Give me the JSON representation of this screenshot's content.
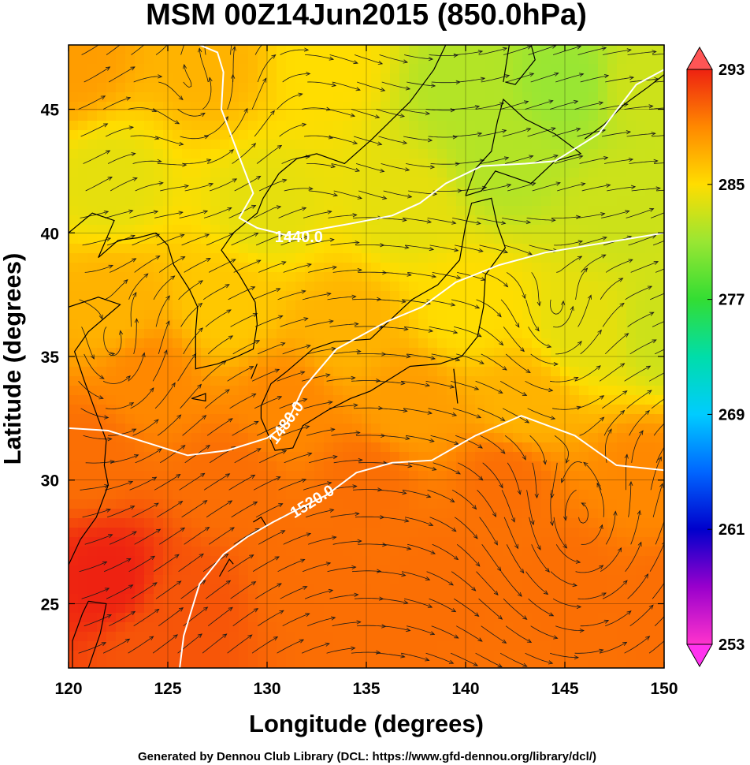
{
  "title": "MSM 00Z14Jun2015 (850.0hPa)",
  "credit": "Generated by Dennou Club Library (DCL: https://www.gfd-dennou.org/library/dcl/)",
  "chart_data": {
    "type": "heatmap",
    "title": "MSM 00Z14Jun2015 (850.0hPa)",
    "xlabel": "Longitude (degrees)",
    "ylabel": "Latitude  (degrees)",
    "xlim": [
      120,
      150
    ],
    "ylim": [
      22.4,
      47.6
    ],
    "x_ticks": [
      {
        "value": 120,
        "label": "120"
      },
      {
        "value": 125,
        "label": "125"
      },
      {
        "value": 130,
        "label": "130"
      },
      {
        "value": 135,
        "label": "135"
      },
      {
        "value": 140,
        "label": "140"
      },
      {
        "value": 145,
        "label": "145"
      },
      {
        "value": 150,
        "label": "150"
      }
    ],
    "y_ticks": [
      {
        "value": 25,
        "label": "25"
      },
      {
        "value": 30,
        "label": "30"
      },
      {
        "value": 35,
        "label": "35"
      },
      {
        "value": 40,
        "label": "40"
      },
      {
        "value": 45,
        "label": "45"
      }
    ],
    "grid": true,
    "colorbar": {
      "min": 253,
      "max": 293,
      "ticks": [
        {
          "value": 293,
          "label": "293"
        },
        {
          "value": 285,
          "label": "285"
        },
        {
          "value": 277,
          "label": "277"
        },
        {
          "value": 269,
          "label": "269"
        },
        {
          "value": 261,
          "label": "261"
        },
        {
          "value": 253,
          "label": "253"
        }
      ],
      "stops": [
        {
          "value": 253,
          "color": "#ff33cc"
        },
        {
          "value": 257,
          "color": "#9900cc"
        },
        {
          "value": 261,
          "color": "#0000cc"
        },
        {
          "value": 265,
          "color": "#0066ff"
        },
        {
          "value": 269,
          "color": "#00ccff"
        },
        {
          "value": 273,
          "color": "#00ddaa"
        },
        {
          "value": 277,
          "color": "#33dd33"
        },
        {
          "value": 281,
          "color": "#99e633"
        },
        {
          "value": 285,
          "color": "#ffdd00"
        },
        {
          "value": 289,
          "color": "#ff8800"
        },
        {
          "value": 293,
          "color": "#ee2211"
        }
      ],
      "over_color": "#ff5555",
      "under_color": "#ff33ee"
    },
    "field_samples": [
      {
        "lon": 120,
        "lat": 47,
        "value": 288
      },
      {
        "lon": 127,
        "lat": 47,
        "value": 287
      },
      {
        "lon": 133,
        "lat": 47,
        "value": 285
      },
      {
        "lon": 140,
        "lat": 46,
        "value": 282
      },
      {
        "lon": 145,
        "lat": 46,
        "value": 281
      },
      {
        "lon": 149,
        "lat": 46,
        "value": 283
      },
      {
        "lon": 122,
        "lat": 42,
        "value": 284
      },
      {
        "lon": 130,
        "lat": 41,
        "value": 284
      },
      {
        "lon": 137,
        "lat": 41,
        "value": 284
      },
      {
        "lon": 142,
        "lat": 43,
        "value": 282
      },
      {
        "lon": 148,
        "lat": 41,
        "value": 283
      },
      {
        "lon": 122,
        "lat": 37,
        "value": 287
      },
      {
        "lon": 128,
        "lat": 37,
        "value": 286
      },
      {
        "lon": 134,
        "lat": 36,
        "value": 287
      },
      {
        "lon": 140,
        "lat": 37,
        "value": 285
      },
      {
        "lon": 146,
        "lat": 36,
        "value": 284
      },
      {
        "lon": 150,
        "lat": 36,
        "value": 283
      },
      {
        "lon": 124,
        "lat": 34,
        "value": 289
      },
      {
        "lon": 131,
        "lat": 33,
        "value": 289
      },
      {
        "lon": 137,
        "lat": 33,
        "value": 288
      },
      {
        "lon": 143,
        "lat": 33,
        "value": 287
      },
      {
        "lon": 121,
        "lat": 31,
        "value": 290
      },
      {
        "lon": 128,
        "lat": 30,
        "value": 290
      },
      {
        "lon": 135,
        "lat": 30,
        "value": 290
      },
      {
        "lon": 142,
        "lat": 30,
        "value": 290
      },
      {
        "lon": 149,
        "lat": 30,
        "value": 289
      },
      {
        "lon": 122,
        "lat": 26,
        "value": 293
      },
      {
        "lon": 126,
        "lat": 25,
        "value": 291
      },
      {
        "lon": 132,
        "lat": 26,
        "value": 290
      },
      {
        "lon": 139,
        "lat": 26,
        "value": 290
      },
      {
        "lon": 145,
        "lat": 26,
        "value": 290
      },
      {
        "lon": 150,
        "lat": 25,
        "value": 290
      },
      {
        "lon": 124,
        "lat": 23,
        "value": 291
      },
      {
        "lon": 135,
        "lat": 23,
        "value": 290
      }
    ],
    "contours": [
      {
        "label": "1440.0",
        "label_at": {
          "lon": 131.6,
          "lat": 39.8
        },
        "points": [
          [
            126.6,
            47.6
          ],
          [
            127.5,
            47.3
          ],
          [
            127.8,
            46.5
          ],
          [
            127.7,
            45.0
          ],
          [
            128.4,
            43.5
          ],
          [
            129.3,
            41.6
          ],
          [
            128.6,
            40.6
          ],
          [
            129.5,
            40.2
          ],
          [
            131.0,
            39.9
          ],
          [
            133.0,
            40.2
          ],
          [
            134.4,
            40.4
          ],
          [
            136.3,
            40.7
          ],
          [
            137.7,
            41.2
          ],
          [
            139.0,
            42.0
          ],
          [
            140.8,
            42.7
          ],
          [
            143.0,
            42.8
          ],
          [
            144.5,
            42.9
          ],
          [
            146.7,
            44.0
          ],
          [
            148.6,
            46.0
          ],
          [
            150.0,
            46.6
          ]
        ]
      },
      {
        "label": "1480.0",
        "label_at": {
          "lon": 131.0,
          "lat": 32.3
        },
        "points": [
          [
            120.0,
            32.1
          ],
          [
            122.0,
            32.0
          ],
          [
            124.0,
            31.5
          ],
          [
            126.0,
            31.0
          ],
          [
            128.0,
            31.2
          ],
          [
            130.0,
            31.7
          ],
          [
            131.0,
            32.3
          ],
          [
            131.8,
            33.7
          ],
          [
            133.5,
            35.3
          ],
          [
            136.0,
            36.4
          ],
          [
            137.8,
            37.0
          ],
          [
            139.5,
            38.0
          ],
          [
            141.7,
            38.7
          ],
          [
            144.0,
            39.2
          ],
          [
            147.0,
            39.6
          ],
          [
            150.0,
            40.0
          ]
        ]
      },
      {
        "label": "1520.0",
        "label_at": {
          "lon": 132.3,
          "lat": 29.1
        },
        "points": [
          [
            125.6,
            22.4
          ],
          [
            125.8,
            23.7
          ],
          [
            126.6,
            25.8
          ],
          [
            127.8,
            27.0
          ],
          [
            129.0,
            27.7
          ],
          [
            130.3,
            28.3
          ],
          [
            131.5,
            28.8
          ],
          [
            133.0,
            29.4
          ],
          [
            134.5,
            30.3
          ],
          [
            136.3,
            30.7
          ],
          [
            138.3,
            30.8
          ],
          [
            140.5,
            31.8
          ],
          [
            142.8,
            32.6
          ],
          [
            145.5,
            31.8
          ],
          [
            147.6,
            30.6
          ],
          [
            150.0,
            30.4
          ]
        ]
      }
    ],
    "vortices": [
      {
        "lon": 144.5,
        "lat": 36.0,
        "radius_deg": 1.6
      },
      {
        "lon": 146.0,
        "lat": 27.2,
        "radius_deg": 2.8
      },
      {
        "lon": 127.0,
        "lat": 44.5,
        "radius_deg": 2.0
      },
      {
        "lon": 122.5,
        "lat": 34.2,
        "radius_deg": 2.0
      }
    ],
    "coastlines": [
      {
        "name": "honshu-kyushu-shikoku",
        "points": [
          [
            129.7,
            33.0
          ],
          [
            130.2,
            33.9
          ],
          [
            131.0,
            34.4
          ],
          [
            132.3,
            35.3
          ],
          [
            133.4,
            35.6
          ],
          [
            135.2,
            35.7
          ],
          [
            136.5,
            36.7
          ],
          [
            137.3,
            37.3
          ],
          [
            138.6,
            37.9
          ],
          [
            139.7,
            38.9
          ],
          [
            140.0,
            40.3
          ],
          [
            140.3,
            41.2
          ],
          [
            141.3,
            41.4
          ],
          [
            141.6,
            40.3
          ],
          [
            142.0,
            39.4
          ],
          [
            141.0,
            38.3
          ],
          [
            140.9,
            37.0
          ],
          [
            140.6,
            35.8
          ],
          [
            139.8,
            35.0
          ],
          [
            138.7,
            34.7
          ],
          [
            137.2,
            34.6
          ],
          [
            136.4,
            34.2
          ],
          [
            135.2,
            33.6
          ],
          [
            134.2,
            33.3
          ],
          [
            133.0,
            32.8
          ],
          [
            131.8,
            32.2
          ],
          [
            131.3,
            31.3
          ],
          [
            130.4,
            31.2
          ],
          [
            129.7,
            32.5
          ],
          [
            129.7,
            33.0
          ]
        ]
      },
      {
        "name": "hokkaido",
        "points": [
          [
            140.0,
            41.5
          ],
          [
            140.5,
            42.6
          ],
          [
            141.3,
            43.3
          ],
          [
            141.6,
            44.5
          ],
          [
            141.9,
            45.4
          ],
          [
            143.0,
            44.6
          ],
          [
            144.5,
            44.0
          ],
          [
            145.5,
            43.4
          ],
          [
            145.8,
            43.2
          ],
          [
            144.5,
            42.9
          ],
          [
            143.3,
            42.0
          ],
          [
            141.5,
            42.5
          ],
          [
            140.8,
            41.7
          ],
          [
            140.0,
            41.5
          ]
        ]
      },
      {
        "name": "sakhalin",
        "points": [
          [
            141.9,
            46.1
          ],
          [
            142.2,
            47.6
          ]
        ]
      },
      {
        "name": "sakhalin-east",
        "points": [
          [
            143.3,
            47.6
          ],
          [
            143.5,
            47.0
          ],
          [
            143.0,
            46.5
          ],
          [
            142.5,
            46.0
          ],
          [
            142.0,
            46.1
          ]
        ]
      },
      {
        "name": "kurils",
        "points": [
          [
            146.0,
            43.8
          ],
          [
            147.0,
            44.4
          ],
          [
            148.0,
            45.2
          ],
          [
            149.2,
            45.9
          ],
          [
            150.0,
            46.4
          ]
        ]
      },
      {
        "name": "korea",
        "points": [
          [
            124.4,
            40.0
          ],
          [
            125.0,
            39.5
          ],
          [
            125.3,
            38.7
          ],
          [
            126.1,
            37.7
          ],
          [
            126.5,
            37.0
          ],
          [
            126.4,
            36.0
          ],
          [
            126.4,
            34.5
          ],
          [
            127.5,
            34.7
          ],
          [
            128.5,
            35.0
          ],
          [
            129.3,
            35.3
          ],
          [
            129.5,
            36.3
          ],
          [
            129.4,
            37.2
          ],
          [
            128.6,
            38.3
          ],
          [
            127.7,
            39.3
          ],
          [
            128.3,
            40.0
          ],
          [
            129.5,
            40.8
          ],
          [
            129.8,
            41.4
          ],
          [
            130.6,
            42.4
          ]
        ]
      },
      {
        "name": "russia-coast",
        "points": [
          [
            130.6,
            42.4
          ],
          [
            131.5,
            43.0
          ],
          [
            132.5,
            43.2
          ],
          [
            133.9,
            42.8
          ],
          [
            135.3,
            43.8
          ],
          [
            137.2,
            45.3
          ],
          [
            138.4,
            46.6
          ],
          [
            139.0,
            47.6
          ]
        ]
      },
      {
        "name": "china-coast-north",
        "points": [
          [
            120.0,
            40.0
          ],
          [
            121.2,
            40.8
          ],
          [
            122.3,
            40.5
          ],
          [
            121.5,
            39.0
          ],
          [
            122.5,
            39.7
          ],
          [
            123.5,
            39.8
          ],
          [
            124.4,
            40.0
          ]
        ]
      },
      {
        "name": "china-coast-east",
        "points": [
          [
            120.0,
            37.0
          ],
          [
            121.5,
            37.4
          ],
          [
            122.6,
            37.1
          ],
          [
            121.0,
            36.0
          ],
          [
            120.3,
            35.2
          ],
          [
            120.8,
            34.0
          ],
          [
            121.9,
            31.6
          ],
          [
            121.8,
            30.6
          ],
          [
            122.0,
            29.8
          ],
          [
            121.4,
            28.5
          ],
          [
            120.6,
            27.6
          ],
          [
            119.9,
            26.4
          ]
        ]
      },
      {
        "name": "taiwan",
        "points": [
          [
            121.0,
            25.1
          ],
          [
            121.9,
            25.0
          ],
          [
            121.6,
            23.8
          ],
          [
            121.0,
            22.4
          ],
          [
            120.2,
            22.4
          ],
          [
            120.2,
            23.5
          ],
          [
            120.7,
            24.6
          ],
          [
            121.0,
            25.1
          ]
        ]
      },
      {
        "name": "jeju",
        "points": [
          [
            126.2,
            33.3
          ],
          [
            126.9,
            33.5
          ],
          [
            126.9,
            33.2
          ],
          [
            126.2,
            33.3
          ]
        ]
      },
      {
        "name": "ryukyu-north",
        "points": [
          [
            129.3,
            28.3
          ],
          [
            129.7,
            28.5
          ],
          [
            130.0,
            28.1
          ]
        ]
      },
      {
        "name": "okinawa",
        "points": [
          [
            127.6,
            26.1
          ],
          [
            128.1,
            26.8
          ],
          [
            128.3,
            26.6
          ]
        ]
      },
      {
        "name": "tsushima",
        "points": [
          [
            129.2,
            34.1
          ],
          [
            129.5,
            34.7
          ]
        ]
      },
      {
        "name": "izu",
        "points": [
          [
            139.4,
            34.5
          ],
          [
            139.6,
            33.1
          ]
        ]
      }
    ]
  }
}
